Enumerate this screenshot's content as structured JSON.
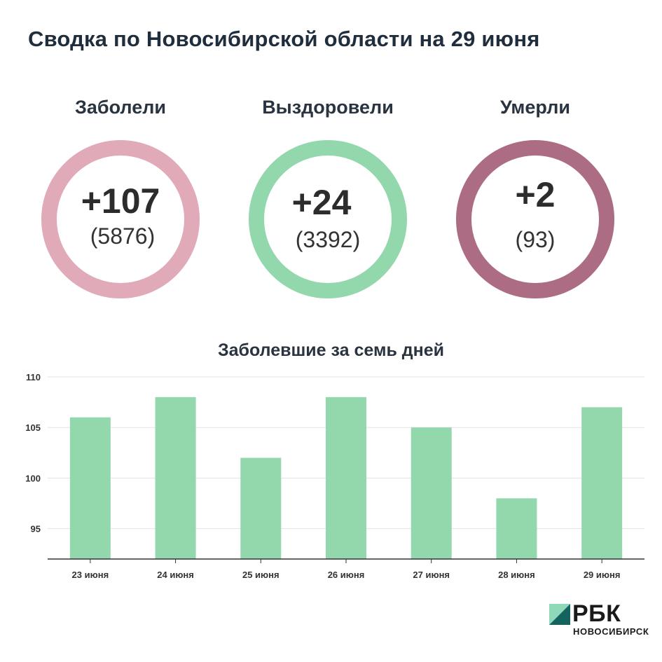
{
  "title": "Сводка по Новосибирской области на 29 июня",
  "stats": [
    {
      "label": "Заболели",
      "main": "+107",
      "sub": "(5876)",
      "color": "#e0aab8"
    },
    {
      "label": "Выздоровели",
      "main": "+24",
      "sub": "(3392)",
      "color": "#93d8ad"
    },
    {
      "label": "Умерли",
      "main": "+2",
      "sub": "(93)",
      "color": "#ac6d84"
    }
  ],
  "chart_data": {
    "type": "bar",
    "title": "Заболевшие за семь дней",
    "categories": [
      "23 июня",
      "24 июня",
      "25 июня",
      "26 июня",
      "27 июня",
      "28 июня",
      "29 июня"
    ],
    "values": [
      106,
      108,
      102,
      108,
      105,
      98,
      107
    ],
    "ylim": [
      92,
      110
    ],
    "yticks": [
      95,
      100,
      105,
      110
    ],
    "grid": true,
    "bar_color": "#93d8ad"
  },
  "brand": {
    "name": "РБК",
    "city": "НОВОСИБИРСК"
  }
}
